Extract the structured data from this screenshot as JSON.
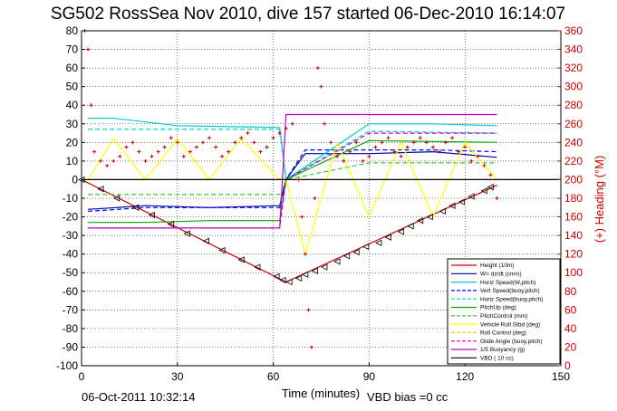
{
  "chart_data": {
    "type": "line",
    "title": "SG502 RossSea Nov 2010, dive 157 started 06-Dec-2010 16:14:07",
    "xlabel": "Time (minutes)",
    "ylabel": "",
    "y2label": "(+) Heading (°M)",
    "xlim": [
      0,
      150
    ],
    "ylim": [
      -100,
      80
    ],
    "y2lim": [
      0,
      360
    ],
    "xticks": [
      "0",
      "30",
      "60",
      "90",
      "120",
      "150"
    ],
    "yticks": [
      "-100",
      "-90",
      "-80",
      "-70",
      "-60",
      "-50",
      "-40",
      "-30",
      "-20",
      "-10",
      "0",
      "10",
      "20",
      "30",
      "40",
      "50",
      "60",
      "70",
      "80"
    ],
    "y2ticks": [
      "0",
      "20",
      "40",
      "60",
      "80",
      "100",
      "120",
      "140",
      "160",
      "180",
      "200",
      "220",
      "240",
      "260",
      "280",
      "300",
      "320",
      "340",
      "360"
    ],
    "grid": true,
    "legend_position": "bottom-right",
    "footer_left": "06-Oct-2011 10:32:14",
    "footer_right": "VBD bias =0 cc",
    "series": [
      {
        "name": "Height (10m)",
        "color": "#cc0000",
        "style": "solid",
        "x": [
          0,
          64,
          130
        ],
        "y": [
          0,
          -55,
          -3
        ]
      },
      {
        "name": "W= dz/dt (cm/s)",
        "color": "#000099",
        "style": "solid",
        "x": [
          2,
          20,
          40,
          62,
          64,
          70,
          90,
          110,
          130
        ],
        "y": [
          -16,
          -14,
          -15,
          -14,
          0,
          14,
          14,
          15,
          12
        ]
      },
      {
        "name": "Horiz Speed(W,pitch)",
        "color": "#00cccc",
        "style": "solid",
        "x": [
          2,
          10,
          30,
          62,
          64,
          90,
          110,
          130
        ],
        "y": [
          33,
          33,
          29,
          28,
          0,
          30,
          30,
          29
        ]
      },
      {
        "name": "Vert Speed(buoy,pitch)",
        "color": "#0000ff",
        "style": "dash",
        "x": [
          2,
          20,
          40,
          62,
          64,
          70,
          90,
          110,
          130
        ],
        "y": [
          -17,
          -15,
          -15,
          -15,
          0,
          16,
          16,
          16,
          15
        ]
      },
      {
        "name": "Horiz Speed(buoy,pitch)",
        "color": "#00cccc",
        "style": "dash",
        "x": [
          2,
          30,
          62,
          64,
          90,
          130
        ],
        "y": [
          27,
          27,
          27,
          0,
          26,
          25
        ]
      },
      {
        "name": "PitchUp (deg)",
        "color": "#00aa00",
        "style": "solid",
        "x": [
          2,
          20,
          40,
          62,
          64,
          90,
          130
        ],
        "y": [
          -23,
          -23,
          -22,
          -22,
          0,
          21,
          20
        ]
      },
      {
        "name": "PitchControl (mm)",
        "color": "#33cc33",
        "style": "dash",
        "x": [
          2,
          30,
          62,
          64,
          90,
          130
        ],
        "y": [
          -8,
          -8,
          -8,
          0,
          9,
          9
        ]
      },
      {
        "name": "Vehicle Roll Stbd (deg)",
        "color": "#ffff00",
        "style": "solid",
        "x": [
          2,
          10,
          20,
          30,
          40,
          50,
          62,
          64,
          70,
          80,
          90,
          100,
          110,
          120,
          130
        ],
        "y": [
          0,
          22,
          0,
          22,
          0,
          22,
          0,
          0,
          -40,
          20,
          -20,
          20,
          -20,
          20,
          0
        ]
      },
      {
        "name": "Roll Control (deg)",
        "color": "#ffcc00",
        "style": "dash",
        "x": [
          2,
          30,
          62,
          64,
          90,
          130
        ],
        "y": [
          0,
          0,
          0,
          0,
          0,
          0
        ]
      },
      {
        "name": "Glide Angle (buoy,pitch)",
        "color": "#cc00cc",
        "style": "dash",
        "x": [
          2,
          30,
          62,
          64,
          90,
          130
        ],
        "y": [
          -26,
          -26,
          -26,
          0,
          25,
          25
        ]
      },
      {
        "name": "1/5 Buoyancy (g)",
        "color": "#cc00cc",
        "style": "solid",
        "x": [
          2,
          30,
          62,
          64,
          90,
          130
        ],
        "y": [
          -26,
          -26,
          -26,
          35,
          35,
          35
        ]
      },
      {
        "name": "VBD ( 10 cc)",
        "color": "#000000",
        "style": "solid",
        "x": [
          0,
          150
        ],
        "y": [
          0,
          0
        ]
      }
    ],
    "heading_series": {
      "name": "(+) Heading (°M)",
      "color": "#cc0000",
      "x": [
        1,
        2,
        3,
        4,
        6,
        8,
        10,
        12,
        14,
        16,
        18,
        20,
        22,
        24,
        26,
        28,
        30,
        32,
        34,
        36,
        38,
        40,
        42,
        44,
        46,
        48,
        50,
        52,
        54,
        56,
        58,
        60,
        62,
        64,
        66,
        68,
        69,
        70,
        71,
        72,
        73,
        74,
        75,
        76,
        78,
        80,
        82,
        84,
        86,
        88,
        90,
        92,
        94,
        96,
        98,
        100,
        102,
        104,
        106,
        108,
        110,
        112,
        114,
        116,
        118,
        120,
        122,
        124,
        126,
        128,
        130
      ],
      "y": [
        360,
        340,
        280,
        230,
        220,
        215,
        220,
        225,
        235,
        240,
        230,
        220,
        225,
        230,
        235,
        245,
        240,
        225,
        230,
        235,
        240,
        245,
        235,
        225,
        230,
        240,
        245,
        250,
        240,
        230,
        235,
        245,
        250,
        255,
        260,
        200,
        160,
        120,
        60,
        20,
        180,
        320,
        300,
        260,
        240,
        225,
        220,
        230,
        240,
        220,
        225,
        235,
        240,
        245,
        230,
        225,
        235,
        240,
        245,
        240,
        235,
        230,
        240,
        245,
        230,
        235,
        220,
        225,
        215,
        205,
        180
      ]
    },
    "markers": {
      "x": [
        0,
        6,
        11,
        17,
        22,
        28,
        33,
        39,
        44,
        50,
        55,
        61,
        63,
        65,
        68,
        70,
        73,
        76,
        80,
        83,
        86,
        89,
        93,
        96,
        100,
        103,
        106,
        109,
        113,
        116,
        119,
        122,
        126,
        128
      ],
      "y": [
        0,
        -5,
        -10,
        -15,
        -19,
        -24,
        -29,
        -33,
        -38,
        -43,
        -47,
        -52,
        -54,
        -55,
        -53,
        -51,
        -49,
        -47,
        -44,
        -41,
        -39,
        -36,
        -34,
        -31,
        -28,
        -25,
        -22,
        -20,
        -17,
        -14,
        -12,
        -9,
        -6,
        -4
      ]
    }
  }
}
